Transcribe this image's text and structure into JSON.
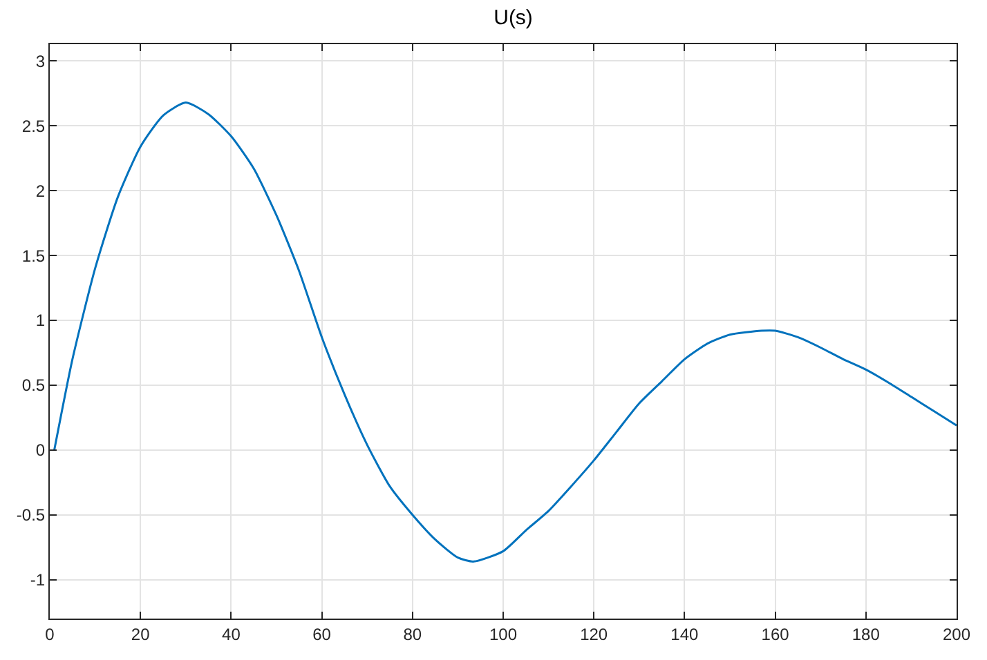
{
  "chart_data": {
    "type": "line",
    "title": "U(s)",
    "x": [
      1,
      5,
      10,
      15,
      20,
      25,
      30,
      35,
      40,
      45,
      50,
      55,
      60,
      65,
      70,
      75,
      80,
      85,
      90,
      93.5,
      100,
      105,
      110,
      115,
      120,
      125,
      130,
      135,
      140,
      145,
      150,
      157,
      160,
      165,
      170,
      175,
      180,
      185,
      190,
      195,
      200
    ],
    "series": [
      {
        "color": "#0072bd",
        "values": [
          0,
          0.7,
          1.4,
          1.95,
          2.34,
          2.58,
          2.68,
          2.59,
          2.42,
          2.17,
          1.81,
          1.38,
          0.87,
          0.43,
          0.04,
          -0.28,
          -0.5,
          -0.69,
          -0.83,
          -0.86,
          -0.78,
          -0.62,
          -0.47,
          -0.28,
          -0.08,
          0.14,
          0.36,
          0.53,
          0.7,
          0.82,
          0.89,
          0.92,
          0.92,
          0.87,
          0.79,
          0.7,
          0.62,
          0.52,
          0.41,
          0.3,
          0.19
        ]
      }
    ],
    "xlim": [
      0,
      200
    ],
    "xticks": [
      0,
      20,
      40,
      60,
      80,
      100,
      120,
      140,
      160,
      180,
      200
    ],
    "ylim": [
      -1.3,
      3.13
    ],
    "yticks": [
      -1,
      -0.5,
      0,
      0.5,
      1,
      1.5,
      2,
      2.5,
      3
    ],
    "grid": true,
    "marker": "none",
    "line_style": "solid"
  }
}
